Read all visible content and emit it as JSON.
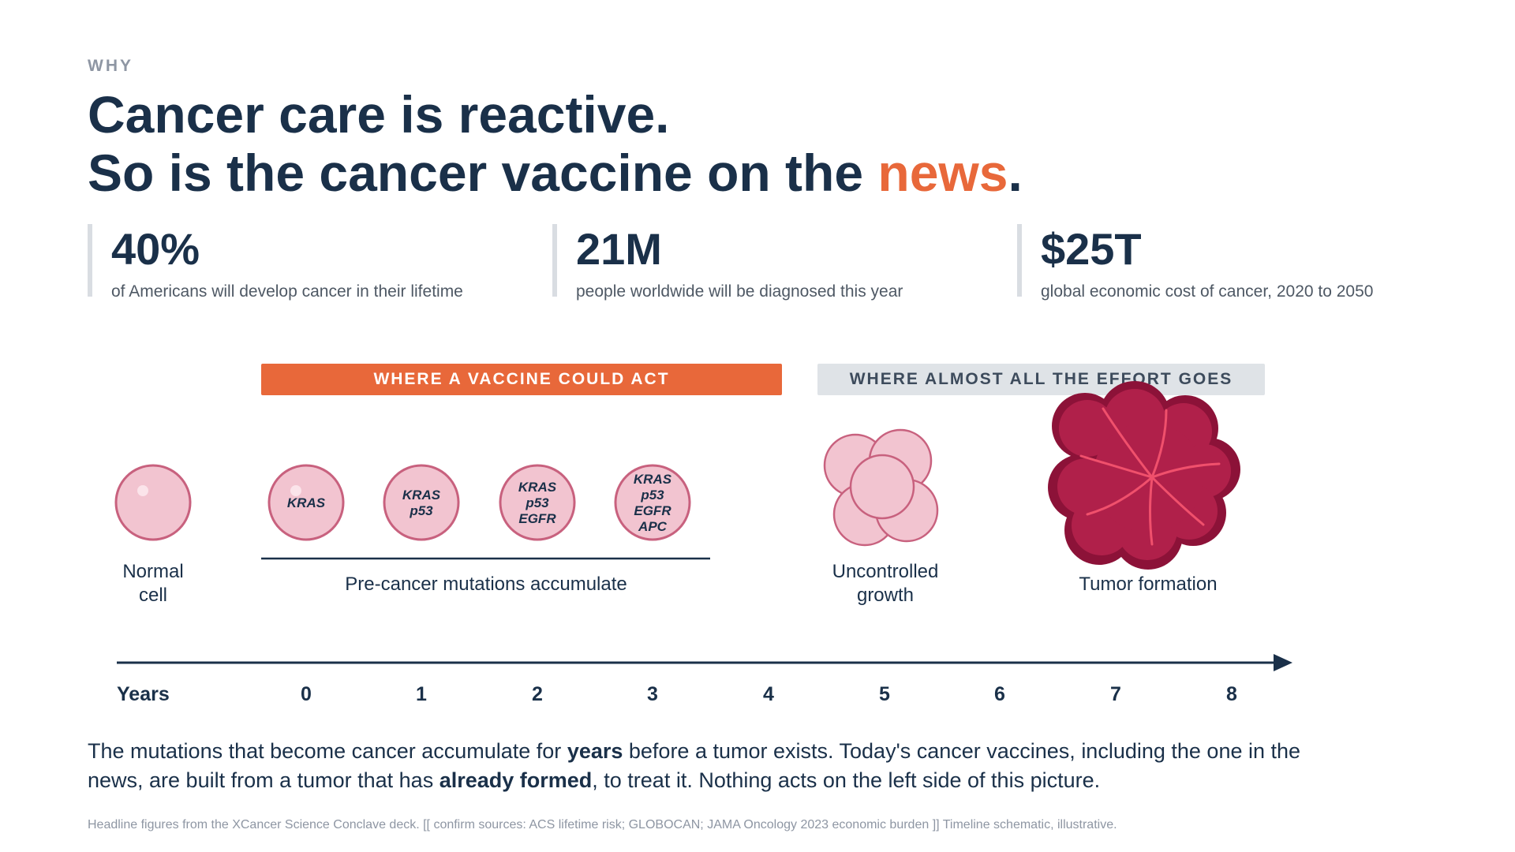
{
  "eyebrow": "WHY",
  "headline": {
    "line1": "Cancer care is reactive.",
    "line2_prefix": "So is the cancer vaccine on the ",
    "line2_accent": "news",
    "line2_suffix": "."
  },
  "stats": [
    {
      "value": "40%",
      "description": "of Americans will develop cancer in their lifetime"
    },
    {
      "value": "21M",
      "description": "people worldwide will be diagnosed this year"
    },
    {
      "value": "$25T",
      "description": "global economic cost of cancer, 2020 to 2050"
    }
  ],
  "bands": {
    "vaccine": "WHERE A VACCINE COULD ACT",
    "effort": "WHERE ALMOST ALL THE EFFORT GOES"
  },
  "stages": {
    "normal_line1": "Normal",
    "normal_line2": "cell",
    "precancer": "Pre-cancer mutations accumulate",
    "uncontrolled_line1": "Uncontrolled",
    "uncontrolled_line2": "growth",
    "tumor": "Tumor formation"
  },
  "mutations": {
    "cell1": [
      "KRAS"
    ],
    "cell2": [
      "KRAS",
      "p53"
    ],
    "cell3": [
      "KRAS",
      "p53",
      "EGFR"
    ],
    "cell4": [
      "KRAS",
      "p53",
      "EGFR",
      "APC"
    ]
  },
  "timeline": {
    "axis_label": "Years",
    "ticks": [
      "0",
      "1",
      "2",
      "3",
      "4",
      "5",
      "6",
      "7",
      "8"
    ]
  },
  "body": {
    "p1": "The mutations that become cancer accumulate for ",
    "b1": "years",
    "p2": " before a tumor exists. Today's cancer vaccines, including the one in the news, are built from a tumor that has ",
    "b2": "already formed",
    "p3": ", to treat it. Nothing acts on the left side of this picture."
  },
  "footnote": "Headline figures from the XCancer Science Conclave deck. [[ confirm sources: ACS lifetime risk; GLOBOCAN; JAMA Oncology 2023 economic burden ]] Timeline schematic, illustrative.",
  "colors": {
    "navy": "#1a3049",
    "orange": "#e8683a",
    "cell_fill": "#f2c4d0",
    "cell_stroke": "#c8617e",
    "tumor_dark": "#8c1238",
    "tumor_mid": "#b0204a",
    "tumor_vein": "#f0506c"
  }
}
